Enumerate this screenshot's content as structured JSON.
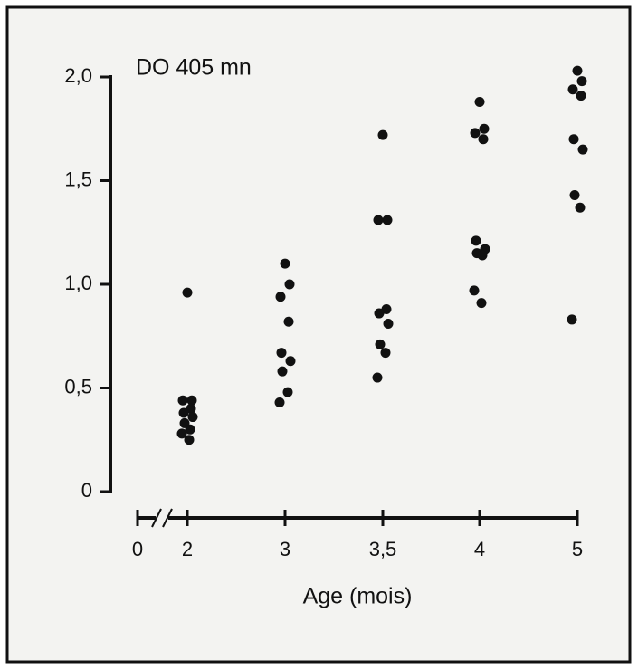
{
  "chart_data": {
    "type": "strip",
    "y_label": "DO 405 mn",
    "x_label": "Age (mois)",
    "categories": [
      "0",
      "2",
      "3",
      "3,5",
      "4",
      "5"
    ],
    "values": [
      [],
      [
        0.96,
        0.44,
        0.44,
        0.4,
        0.38,
        0.36,
        0.33,
        0.3,
        0.28,
        0.25
      ],
      [
        1.1,
        1.0,
        0.94,
        0.82,
        0.67,
        0.63,
        0.58,
        0.48,
        0.43
      ],
      [
        1.72,
        1.31,
        1.31,
        0.88,
        0.86,
        0.81,
        0.71,
        0.67,
        0.55
      ],
      [
        1.88,
        1.75,
        1.73,
        1.7,
        1.21,
        1.17,
        1.15,
        1.14,
        0.97,
        0.91
      ],
      [
        2.03,
        1.98,
        1.94,
        1.91,
        1.7,
        1.65,
        1.43,
        1.37,
        0.83
      ]
    ],
    "color": "#111111",
    "ylim": [
      0,
      2
    ],
    "yticks": [
      0,
      {
        "value": 0.5,
        "label": "0,5"
      },
      {
        "value": 1,
        "label": "1,0"
      },
      {
        "value": 1.5,
        "label": "1,5"
      },
      {
        "value": 2,
        "label": "2,0"
      }
    ],
    "grid": false
  }
}
